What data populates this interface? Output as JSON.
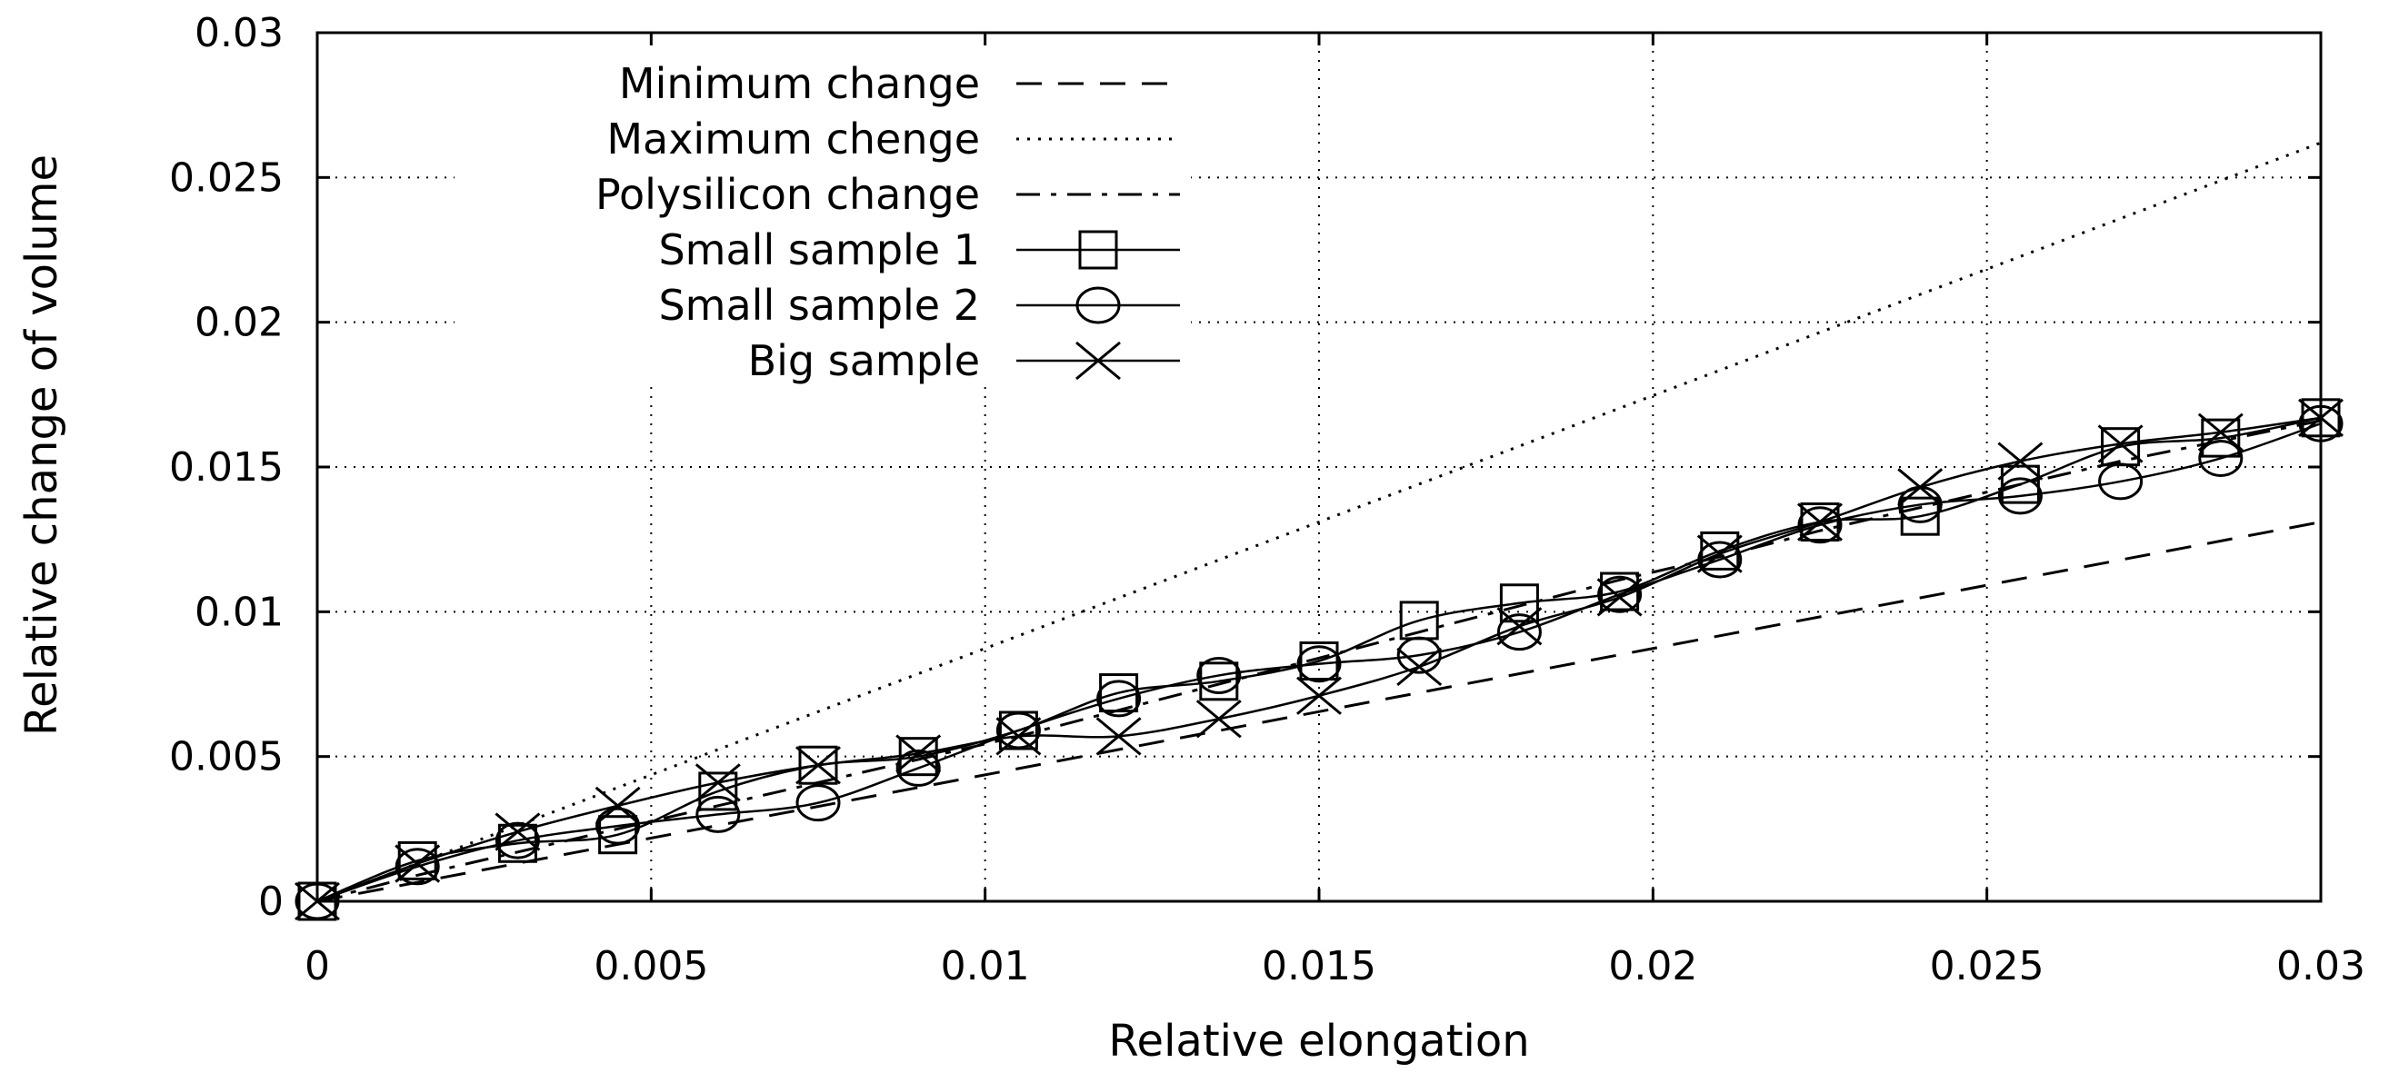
{
  "chart_data": {
    "type": "line",
    "title": "",
    "xlabel": "Relative elongation",
    "ylabel": "Relative change of volume",
    "xlim": [
      0,
      0.03
    ],
    "ylim": [
      0,
      0.03
    ],
    "grid": true,
    "legend_position": "top-left",
    "x_ticks": [
      0,
      0.005,
      0.01,
      0.015,
      0.02,
      0.025,
      0.03
    ],
    "x_tick_labels": [
      "0",
      "0.005",
      "0.01",
      "0.015",
      "0.02",
      "0.025",
      "0.03"
    ],
    "y_ticks": [
      0,
      0.005,
      0.01,
      0.015,
      0.02,
      0.025,
      0.03
    ],
    "y_tick_labels": [
      "0",
      "0.005",
      "0.01",
      "0.015",
      "0.02",
      "0.025",
      "0.03"
    ],
    "series": [
      {
        "name": "Minimum change",
        "style": "dashed",
        "marker": "none",
        "x": [
          0,
          0.03
        ],
        "y": [
          0,
          0.0131
        ]
      },
      {
        "name": "Maximum chenge",
        "style": "dotted",
        "marker": "none",
        "x": [
          0,
          0.03
        ],
        "y": [
          0,
          0.0262
        ]
      },
      {
        "name": "Polysilicon change",
        "style": "dashdot",
        "marker": "none",
        "x": [
          0,
          0.0015,
          0.003,
          0.0045,
          0.006,
          0.0075,
          0.009,
          0.0105,
          0.012,
          0.0135,
          0.015,
          0.0165,
          0.018,
          0.0195,
          0.021,
          0.0225,
          0.024,
          0.0255,
          0.027,
          0.0285,
          0.03
        ],
        "y": [
          0,
          0.0009,
          0.0017,
          0.0025,
          0.0033,
          0.0041,
          0.0049,
          0.0057,
          0.0066,
          0.0075,
          0.0084,
          0.0093,
          0.0102,
          0.0111,
          0.0119,
          0.0128,
          0.0136,
          0.0144,
          0.0152,
          0.0159,
          0.0166
        ]
      },
      {
        "name": "Small sample 1",
        "style": "solid",
        "marker": "square",
        "x": [
          0,
          0.0015,
          0.003,
          0.0045,
          0.006,
          0.0075,
          0.009,
          0.0105,
          0.012,
          0.0135,
          0.015,
          0.0165,
          0.018,
          0.0195,
          0.021,
          0.0225,
          0.024,
          0.0255,
          0.027,
          0.0285,
          0.03
        ],
        "y": [
          0,
          0.0014,
          0.002,
          0.0023,
          0.0038,
          0.0047,
          0.005,
          0.0059,
          0.0072,
          0.0076,
          0.0083,
          0.0097,
          0.0103,
          0.0107,
          0.0121,
          0.0131,
          0.0133,
          0.0144,
          0.0157,
          0.016,
          0.0167
        ]
      },
      {
        "name": "Small sample 2",
        "style": "solid",
        "marker": "circle",
        "x": [
          0,
          0.0015,
          0.003,
          0.0045,
          0.006,
          0.0075,
          0.009,
          0.0105,
          0.012,
          0.0135,
          0.015,
          0.0165,
          0.018,
          0.0195,
          0.021,
          0.0225,
          0.024,
          0.0255,
          0.027,
          0.0285,
          0.03
        ],
        "y": [
          0,
          0.0012,
          0.0021,
          0.0026,
          0.003,
          0.0034,
          0.0046,
          0.0059,
          0.007,
          0.0078,
          0.0082,
          0.0085,
          0.0093,
          0.0106,
          0.0118,
          0.013,
          0.0137,
          0.014,
          0.0145,
          0.0153,
          0.0165
        ]
      },
      {
        "name": "Big sample",
        "style": "solid",
        "marker": "x",
        "x": [
          0,
          0.0015,
          0.003,
          0.0045,
          0.006,
          0.0075,
          0.009,
          0.0105,
          0.012,
          0.0135,
          0.015,
          0.0165,
          0.018,
          0.0195,
          0.021,
          0.0225,
          0.024,
          0.0255,
          0.027,
          0.0285,
          0.03
        ],
        "y": [
          0,
          0.0013,
          0.0024,
          0.0033,
          0.0041,
          0.0047,
          0.0051,
          0.0057,
          0.0057,
          0.0063,
          0.0071,
          0.0081,
          0.0095,
          0.0105,
          0.012,
          0.0131,
          0.0143,
          0.0152,
          0.0158,
          0.0162,
          0.0167
        ]
      }
    ]
  }
}
